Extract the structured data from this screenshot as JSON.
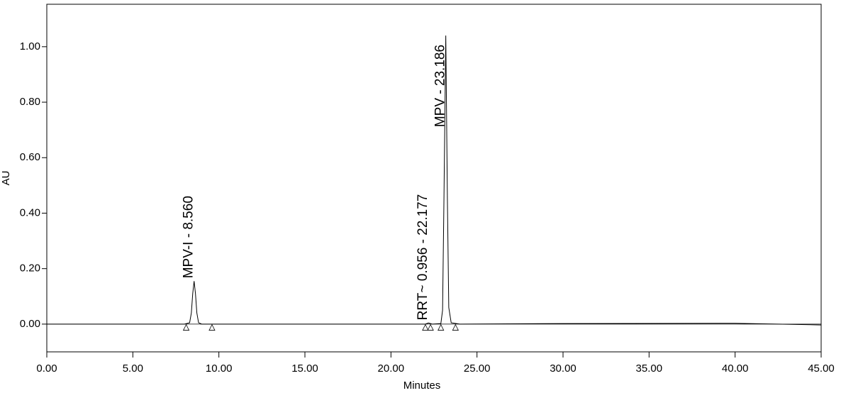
{
  "chart_data": {
    "type": "line",
    "x_label": "Minutes",
    "y_label": "AU",
    "x": [
      0,
      8.0,
      8.3,
      8.4,
      8.48,
      8.56,
      8.64,
      8.72,
      8.82,
      9.0,
      22.0,
      22.177,
      22.4,
      22.9,
      23.0,
      23.08,
      23.186,
      23.28,
      23.36,
      23.5,
      24.0,
      30.0,
      40.0,
      45.0
    ],
    "values": [
      0,
      0,
      0.005,
      0.04,
      0.11,
      0.155,
      0.11,
      0.04,
      0.005,
      0,
      0,
      0.004,
      0,
      0.002,
      0.05,
      0.45,
      1.04,
      0.45,
      0.06,
      0.005,
      0,
      0.002,
      0.003,
      -0.003
    ],
    "color": "#000000",
    "peak_labels": [
      {
        "text": "MPV-I - 8.560",
        "x": 8.56,
        "y": 0.155
      },
      {
        "text": "RRT~ 0.956 - 22.177",
        "x": 22.177,
        "y": 0.004
      },
      {
        "text": "MPV - 23.186",
        "x": 23.186,
        "y": 0.7
      }
    ],
    "baseline_markers": {
      "x": [
        8.1,
        9.6,
        22.0,
        22.3,
        22.9,
        23.75
      ],
      "y": [
        -0.012,
        -0.012,
        -0.012,
        -0.012,
        -0.012,
        -0.012
      ]
    },
    "xlim": [
      0,
      45
    ],
    "ylim": [
      -0.1,
      1.153
    ],
    "xticks": [
      {
        "value": 0,
        "label": "0.00"
      },
      {
        "value": 5,
        "label": "5.00"
      },
      {
        "value": 10,
        "label": "10.00"
      },
      {
        "value": 15,
        "label": "15.00"
      },
      {
        "value": 20,
        "label": "20.00"
      },
      {
        "value": 25,
        "label": "25.00"
      },
      {
        "value": 30,
        "label": "30.00"
      },
      {
        "value": 35,
        "label": "35.00"
      },
      {
        "value": 40,
        "label": "40.00"
      },
      {
        "value": 45,
        "label": "45.00"
      }
    ],
    "yticks": [
      {
        "value": 0,
        "label": "0.00"
      },
      {
        "value": 0.2,
        "label": "0.20"
      },
      {
        "value": 0.4,
        "label": "0.40"
      },
      {
        "value": 0.6,
        "label": "0.60"
      },
      {
        "value": 0.8,
        "label": "0.80"
      },
      {
        "value": 1.0,
        "label": "1.00"
      }
    ]
  }
}
